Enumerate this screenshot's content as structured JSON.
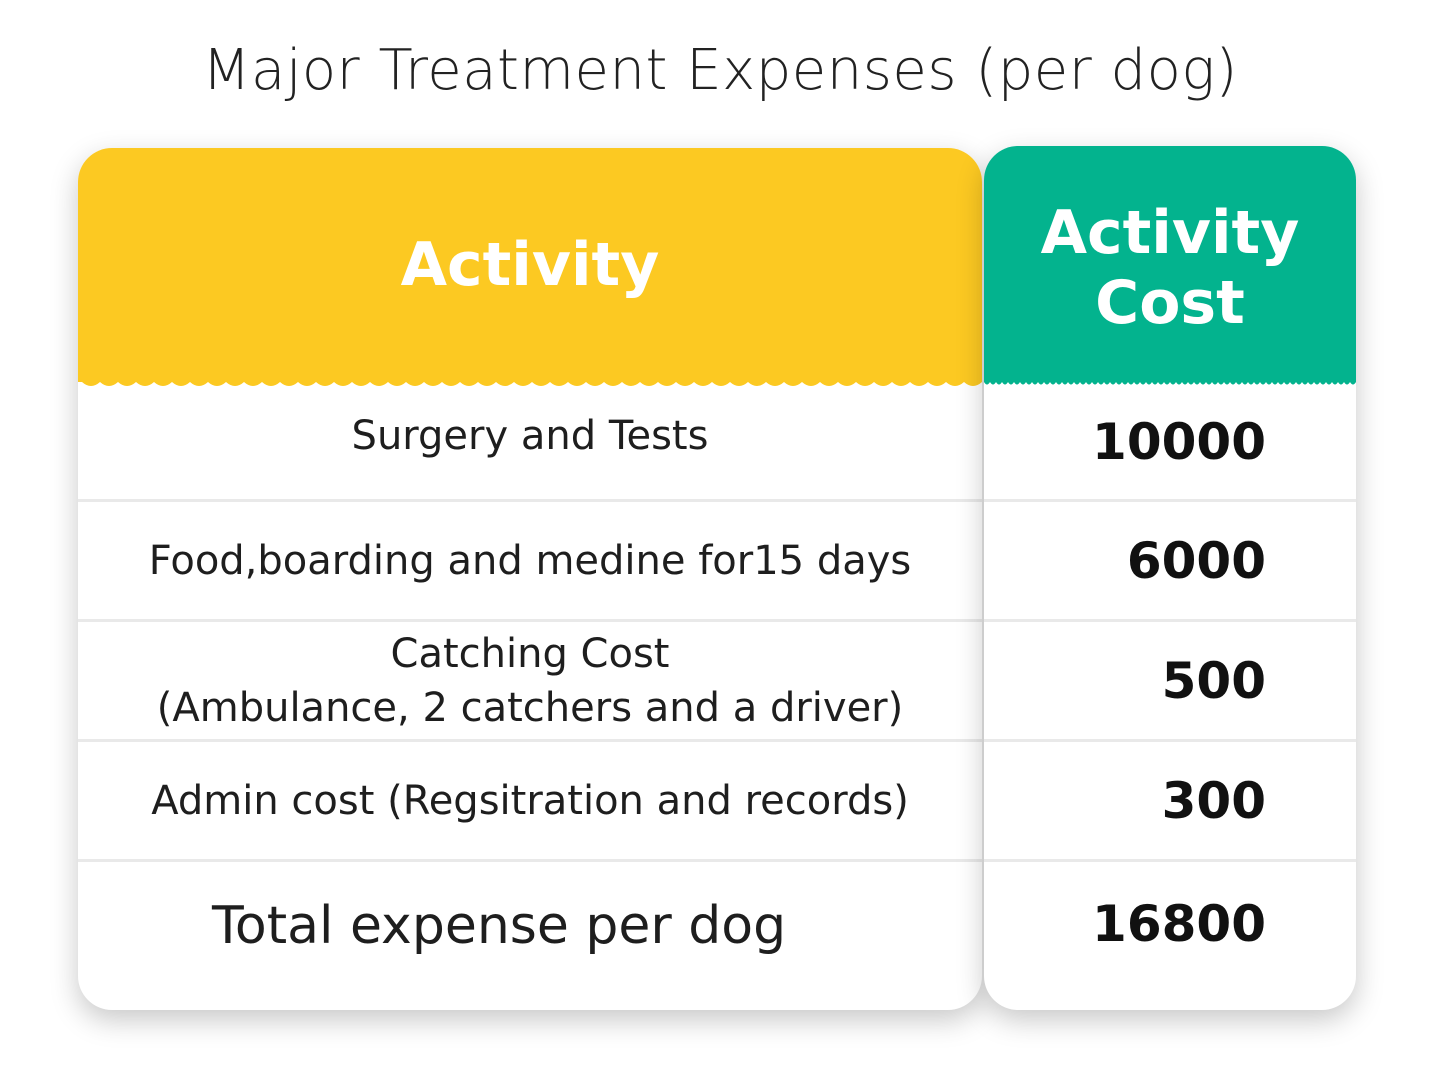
{
  "title": "Major Treatment Expenses (per dog)",
  "header": {
    "activity_label": "Activity",
    "cost_label_line1": "Activity",
    "cost_label_line2": "Cost"
  },
  "colors": {
    "activity_header": "#fcc922",
    "cost_header": "#03b38e"
  },
  "rows": [
    {
      "activity": "Surgery and Tests",
      "cost": "10000"
    },
    {
      "activity": "Food,boarding and medine for15 days",
      "cost": "6000"
    },
    {
      "activity_line1": "Catching Cost",
      "activity_line2": "(Ambulance, 2 catchers and a driver)",
      "cost": "500"
    },
    {
      "activity": "Admin cost (Regsitration and records)",
      "cost": "300"
    }
  ],
  "total": {
    "label": "Total expense per dog",
    "value": "16800"
  }
}
